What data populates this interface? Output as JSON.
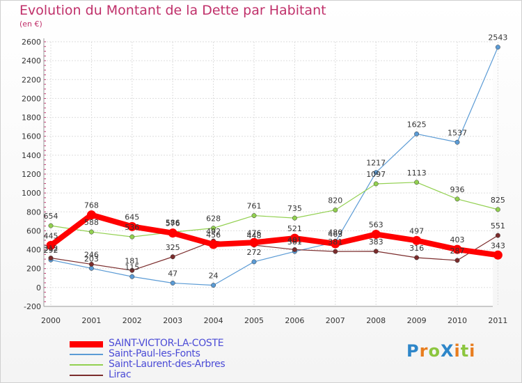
{
  "title": "Evolution du Montant de la Dette par Habitant",
  "subtitle": "(en €)",
  "logo": {
    "text": "ProXiti",
    "letters": [
      "P",
      "r",
      "o",
      "X",
      "i",
      "t",
      "i"
    ],
    "letter_colors": [
      "#2e86c9",
      "#e87d1e",
      "#8cc63f",
      "#2e86c9",
      "#e87d1e",
      "#8cc63f",
      "#e87d1e"
    ]
  },
  "chart_data": {
    "type": "line",
    "title": "Evolution du Montant de la Dette par Habitant",
    "ylabel": "(en €)",
    "categories": [
      "2000",
      "2001",
      "2002",
      "2003",
      "2004",
      "2005",
      "2006",
      "2007",
      "2008",
      "2009",
      "2010",
      "2011"
    ],
    "ylim": [
      -200,
      2600
    ],
    "yticks": [
      -200,
      0,
      200,
      400,
      600,
      800,
      1000,
      1200,
      1400,
      1600,
      1800,
      2000,
      2200,
      2400,
      2600
    ],
    "grid": true,
    "legend_position": "bottom-left",
    "series": [
      {
        "name": "SAINT-VICTOR-LA-COSTE",
        "color": "#ff0000",
        "values": [
          445,
          768,
          645,
          576,
          456,
          476,
          521,
          463,
          563,
          497,
          403,
          343
        ]
      },
      {
        "name": "Saint-Paul-les-Fonts",
        "color": "#5b9bd5",
        "values": [
          292,
          203,
          115,
          47,
          24,
          272,
          381,
          480,
          1217,
          1625,
          1537,
          2543
        ]
      },
      {
        "name": "Saint-Laurent-des-Arbres",
        "color": "#92d050",
        "values": [
          654,
          588,
          536,
          586,
          628,
          761,
          735,
          820,
          1097,
          1113,
          936,
          825
        ]
      },
      {
        "name": "Lirac",
        "color": "#7b2c2c",
        "values": [
          312,
          246,
          181,
          325,
          492,
          448,
          401,
          381,
          383,
          316,
          287,
          551
        ]
      }
    ]
  }
}
